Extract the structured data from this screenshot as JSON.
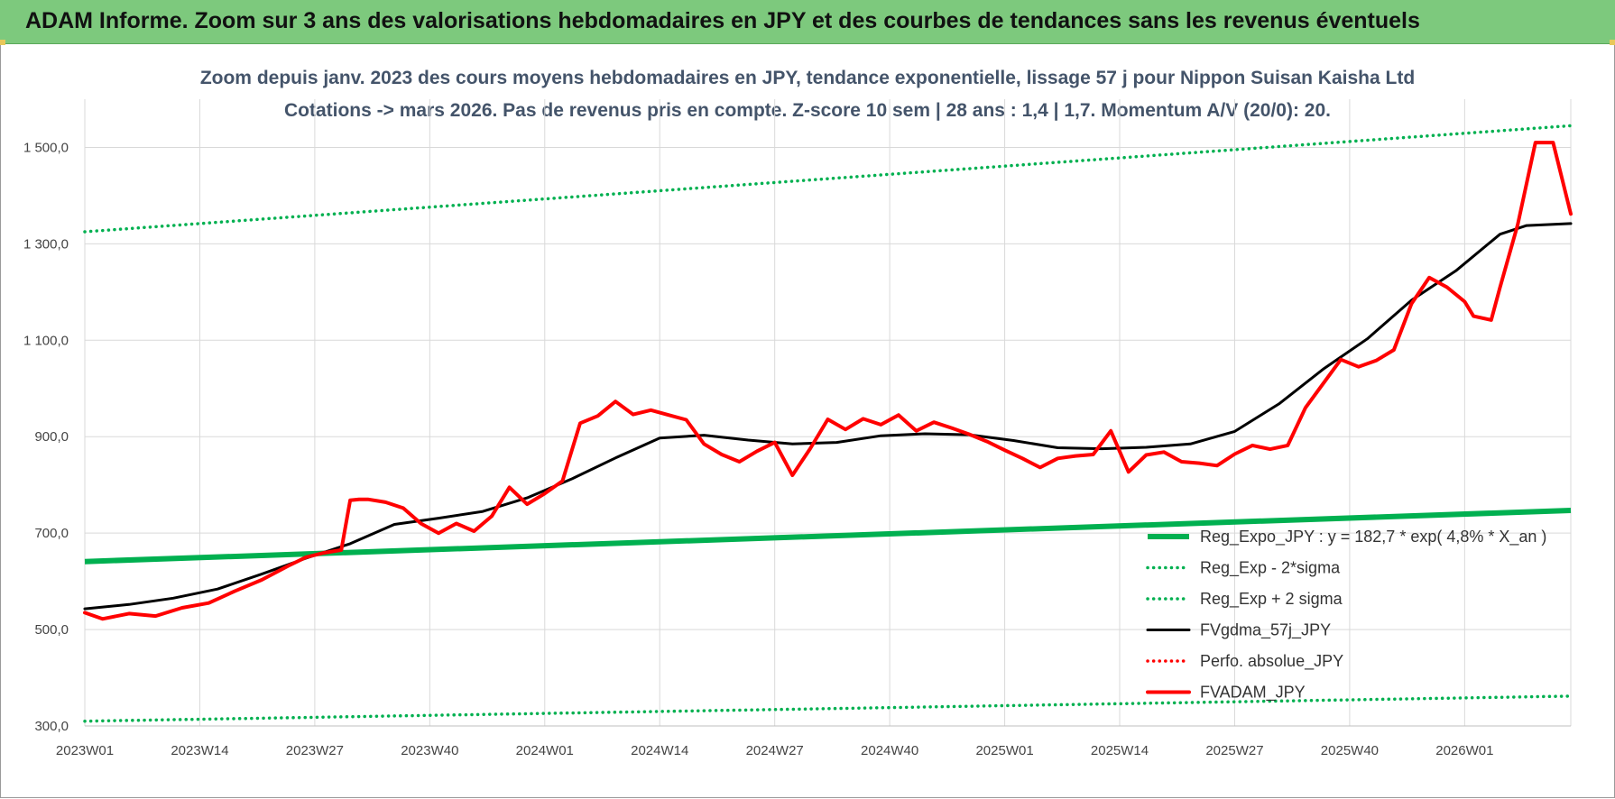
{
  "header": {
    "title": "ADAM Informe. Zoom sur 3 ans des valorisations hebdomadaires en JPY et des courbes de tendances sans les revenus éventuels"
  },
  "chart_data": {
    "type": "line",
    "title_line1": "Zoom depuis janv. 2023 des cours moyens hebdomadaires en JPY, tendance exponentielle, lissage 57 j pour Nippon Suisan Kaisha Ltd",
    "title_line2": "Cotations -> mars 2026. Pas de revenus pris en compte. Z-score 10 sem | 28 ans : 1,4 | 1,7. Momentum A/V (20/0): 20.",
    "xlabel": "",
    "ylabel": "",
    "ylim": [
      300,
      1600
    ],
    "grid": true,
    "legend_position": "bottom-right",
    "x_ticks": [
      "2023W01",
      "2023W14",
      "2023W27",
      "2023W40",
      "2024W01",
      "2024W14",
      "2024W27",
      "2024W40",
      "2025W01",
      "2025W14",
      "2025W27",
      "2025W40",
      "2026W01"
    ],
    "y_ticks": [
      {
        "value": 300,
        "label": "300,0"
      },
      {
        "value": 500,
        "label": "500,0"
      },
      {
        "value": 700,
        "label": "700,0"
      },
      {
        "value": 900,
        "label": "900,0"
      },
      {
        "value": 1100,
        "label": "1 100,0"
      },
      {
        "value": 1300,
        "label": "1 300,0"
      },
      {
        "value": 1500,
        "label": "1 500,0"
      }
    ],
    "x_range_weeks": [
      0,
      168
    ],
    "series": [
      {
        "name": "Reg_Expo_JPY : y = 182,7 * exp( 4,8% *  X_an )",
        "color": "#00b050",
        "style": "thick",
        "x": [
          0,
          168
        ],
        "values": [
          641,
          747
        ]
      },
      {
        "name": "Reg_Exp - 2*sigma",
        "color": "#00b050",
        "style": "dotted",
        "x": [
          0,
          168
        ],
        "values": [
          310,
          362
        ]
      },
      {
        "name": "Reg_Exp + 2 sigma",
        "color": "#00b050",
        "style": "dotted",
        "x": [
          0,
          168
        ],
        "values": [
          1325,
          1545
        ]
      },
      {
        "name": "FVgdma_57j_JPY",
        "color": "#000000",
        "style": "solid",
        "x": [
          0,
          5,
          10,
          15,
          20,
          25,
          30,
          35,
          40,
          45,
          50,
          55,
          60,
          65,
          70,
          75,
          80,
          85,
          90,
          95,
          100,
          105,
          110,
          115,
          120,
          125,
          130,
          135,
          140,
          145,
          150,
          155,
          160,
          163,
          168
        ],
        "values": [
          543,
          552,
          565,
          584,
          615,
          648,
          678,
          718,
          731,
          745,
          773,
          812,
          856,
          897,
          903,
          893,
          885,
          888,
          902,
          906,
          904,
          892,
          877,
          875,
          878,
          885,
          911,
          968,
          1040,
          1103,
          1183,
          1244,
          1320,
          1338,
          1342
        ]
      },
      {
        "name": "Perfo. absolue_JPY",
        "color": "#ff0000",
        "style": "dotted",
        "x": [],
        "values": []
      },
      {
        "name": "FVADAM_JPY",
        "color": "#ff0000",
        "style": "thick",
        "x": [
          0,
          2,
          5,
          8,
          11,
          14,
          17,
          20,
          23,
          25,
          27,
          29,
          30,
          31,
          32,
          34,
          36,
          38,
          40,
          42,
          44,
          46,
          48,
          50,
          52,
          54,
          56,
          58,
          60,
          62,
          64,
          66,
          68,
          70,
          72,
          74,
          76,
          78,
          80,
          82,
          84,
          86,
          88,
          90,
          92,
          94,
          96,
          98,
          100,
          102,
          104,
          106,
          108,
          110,
          112,
          114,
          116,
          118,
          120,
          122,
          124,
          126,
          128,
          130,
          132,
          134,
          136,
          138,
          140,
          142,
          144,
          146,
          148,
          150,
          152,
          154,
          156,
          157,
          159,
          160,
          162,
          164,
          166,
          168
        ],
        "values": [
          535,
          522,
          533,
          528,
          545,
          555,
          580,
          603,
          632,
          650,
          659,
          665,
          768,
          770,
          770,
          764,
          752,
          720,
          700,
          720,
          704,
          735,
          795,
          760,
          782,
          808,
          928,
          943,
          973,
          946,
          955,
          945,
          935,
          885,
          863,
          848,
          870,
          888,
          820,
          875,
          936,
          915,
          937,
          925,
          945,
          912,
          930,
          918,
          905,
          890,
          872,
          855,
          836,
          855,
          860,
          863,
          912,
          827,
          862,
          868,
          848,
          845,
          840,
          864,
          882,
          874,
          882,
          960,
          1010,
          1060,
          1045,
          1058,
          1080,
          1176,
          1230,
          1210,
          1180,
          1150,
          1142,
          1210,
          1340,
          1510,
          1510,
          1362
        ]
      }
    ]
  }
}
